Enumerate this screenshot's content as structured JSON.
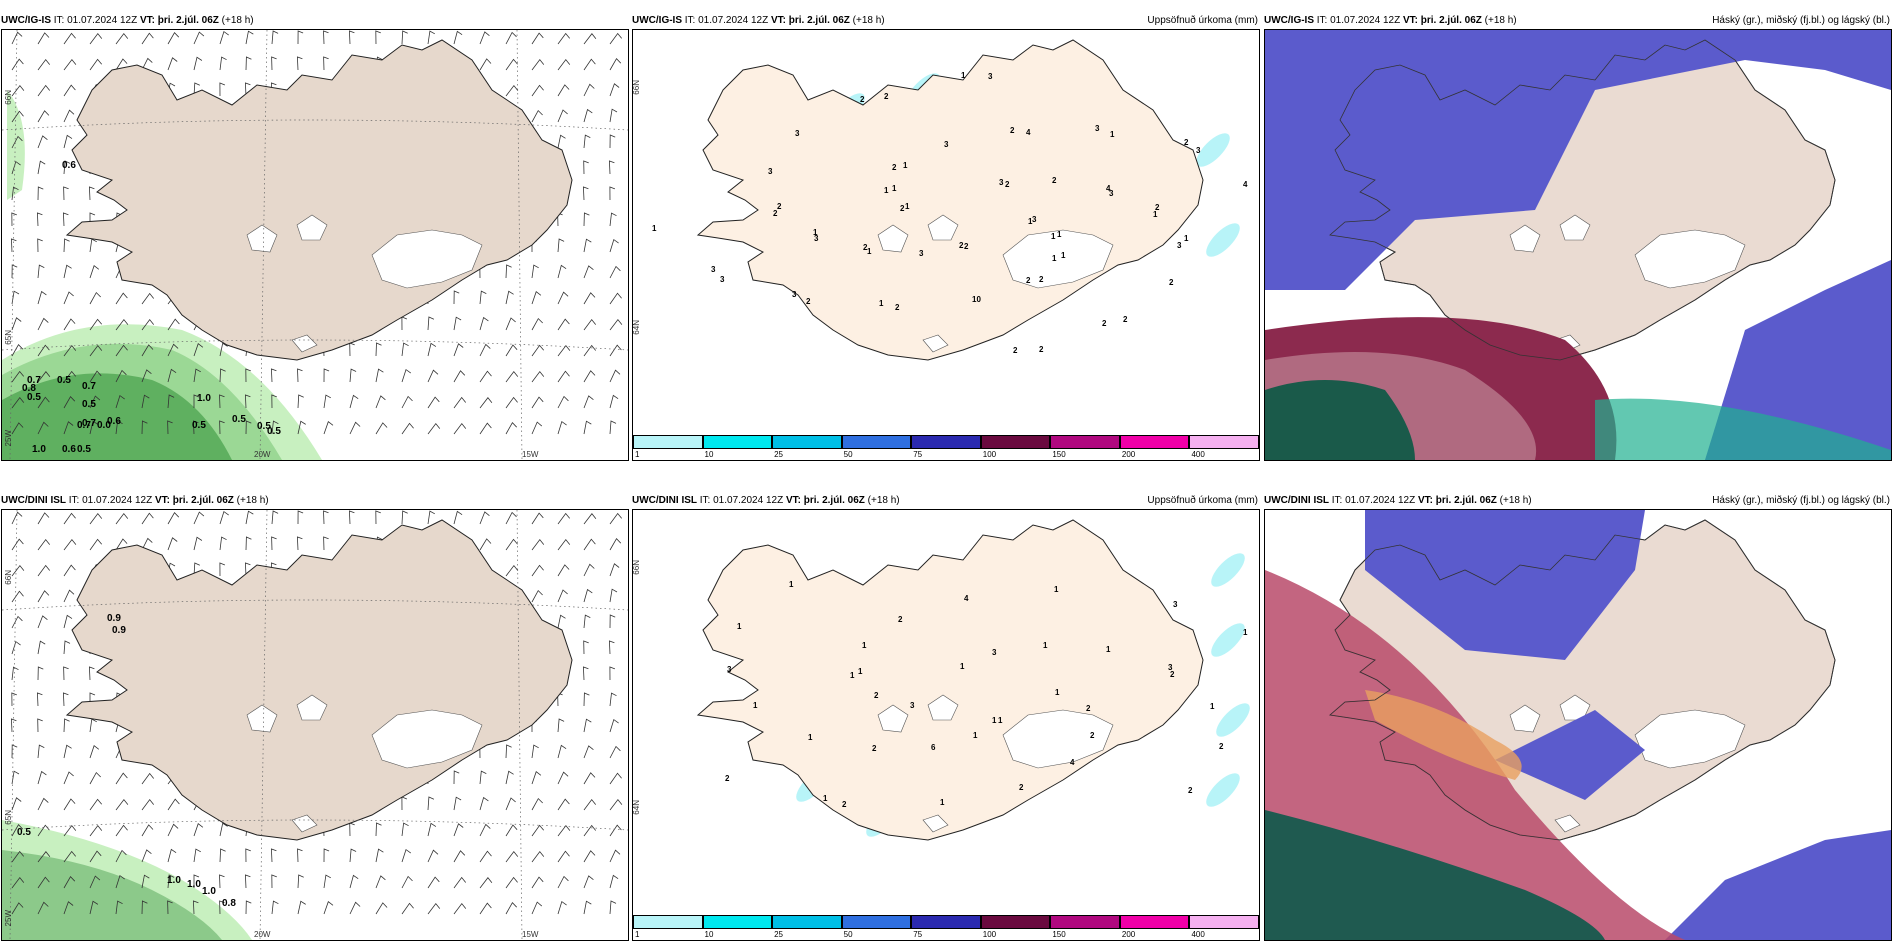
{
  "panels": [
    {
      "model": "UWC/IG-IS",
      "it_label": "IT:",
      "it": "01.07.2024 12Z",
      "vt_label": "VT:",
      "vt": "þri. 2.júl. 06Z",
      "lead": "(+18 h)",
      "right": "",
      "type": "wind"
    },
    {
      "model": "UWC/IG-IS",
      "it_label": "IT:",
      "it": "01.07.2024 12Z",
      "vt_label": "VT:",
      "vt": "þri. 2.júl. 06Z",
      "lead": "(+18 h)",
      "right": "Uppsöfnuð úrkoma (mm)",
      "type": "precip"
    },
    {
      "model": "UWC/IG-IS",
      "it_label": "IT:",
      "it": "01.07.2024 12Z",
      "vt_label": "VT:",
      "vt": "þri. 2.júl. 06Z",
      "lead": "(+18 h)",
      "right": "Háský (gr.), miðský (fj.bl.) og lágský (bl.)",
      "type": "cloud"
    },
    {
      "model": "UWC/DINI ISL",
      "it_label": "IT:",
      "it": "01.07.2024 12Z",
      "vt_label": "VT:",
      "vt": "þri. 2.júl. 06Z",
      "lead": "(+18 h)",
      "right": "",
      "type": "wind"
    },
    {
      "model": "UWC/DINI ISL",
      "it_label": "IT:",
      "it": "01.07.2024 12Z",
      "vt_label": "VT:",
      "vt": "þri. 2.júl. 06Z",
      "lead": "(+18 h)",
      "right": "Uppsöfnuð úrkoma (mm)",
      "type": "precip"
    },
    {
      "model": "UWC/DINI ISL",
      "it_label": "IT:",
      "it": "01.07.2024 12Z",
      "vt_label": "VT:",
      "vt": "þri. 2.júl. 06Z",
      "lead": "(+18 h)",
      "right": "Háský (gr.), miðský (fj.bl.) og lágský (bl.)",
      "type": "cloud"
    }
  ],
  "grid_labels": {
    "lat66": "66N",
    "lat65": "65N",
    "lat64": "64N",
    "lon20": "20W",
    "lon15": "15W",
    "lon25": "25W"
  },
  "precip_legend": {
    "ticks": [
      "1",
      "10",
      "25",
      "50",
      "75",
      "100",
      "150",
      "200",
      "400"
    ],
    "colors": [
      "#b8f4f8",
      "#00e8ef",
      "#00bfe6",
      "#2f6fe0",
      "#2b2ab0",
      "#6a0a3f",
      "#b0087f",
      "#f000a8",
      "#f5b0f0"
    ]
  },
  "wind_values_top": [
    "0.6",
    "0.7",
    "0.8",
    "0.5",
    "0.7",
    "0.5",
    "0.5",
    "0.7",
    "1.0",
    "0.6",
    "0.7",
    "0.0",
    "0.5",
    "0.5",
    "1.0",
    "0.6",
    "0.5",
    "0.5",
    "0.5"
  ],
  "wind_values_bottom": [
    "0.9",
    "0.9",
    "0.5",
    "1.0",
    "1.0",
    "1.0",
    "0.8"
  ],
  "precip_values_top": [
    "1",
    "2",
    "4",
    "2",
    "1",
    "3",
    "1",
    "2",
    "1",
    "1",
    "1",
    "2",
    "1",
    "1",
    "3",
    "3",
    "1",
    "2",
    "3",
    "2",
    "1",
    "3",
    "3",
    "2",
    "2",
    "3",
    "4",
    "3",
    "3",
    "2",
    "1",
    "2",
    "10",
    "3",
    "3",
    "1",
    "2",
    "2",
    "2",
    "4",
    "2",
    "2",
    "1",
    "3",
    "3",
    "2",
    "1",
    "2",
    "2",
    "1",
    "1",
    "2",
    "2",
    "2",
    "2",
    "1",
    "3",
    "3",
    "2"
  ],
  "precip_values_bottom": [
    "1",
    "1",
    "2",
    "1",
    "1",
    "2",
    "1",
    "3",
    "1",
    "1",
    "1",
    "2",
    "3",
    "4",
    "3",
    "1",
    "6",
    "2",
    "2",
    "3",
    "1",
    "2",
    "1",
    "1",
    "2",
    "4",
    "2",
    "2",
    "1",
    "1",
    "1",
    "2",
    "1",
    "1",
    "1",
    "1",
    "3",
    "2"
  ],
  "colors": {
    "land_wind": "#e6d8cc",
    "land_precip": "#fdf0e3",
    "land_cloud": "#eadbd2",
    "glacier": "#ffffff",
    "coast": "#222222"
  }
}
